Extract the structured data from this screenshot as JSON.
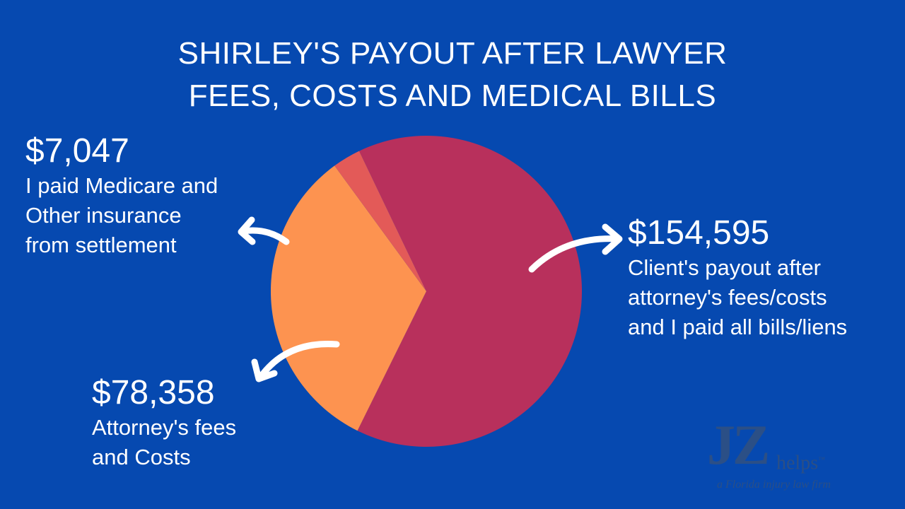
{
  "title": {
    "line1": "SHIRLEY'S PAYOUT AFTER LAWYER",
    "line2": "FEES, COSTS AND MEDICAL BILLS"
  },
  "colors": {
    "background": "#0649b0",
    "client_payout": "#b8305c",
    "attorney_fees": "#fd9350",
    "medicare": "#e35a58",
    "arrow": "#ffffff",
    "logo": "#2b4f86"
  },
  "callouts": {
    "medicare": {
      "amount": "$7,047",
      "desc_line1": "I paid Medicare and",
      "desc_line2": "Other insurance",
      "desc_line3": "from settlement"
    },
    "attorney": {
      "amount": "$78,358",
      "desc_line1": "Attorney's fees",
      "desc_line2": "and Costs"
    },
    "client": {
      "amount": "$154,595",
      "desc_line1": "Client's payout after",
      "desc_line2": "attorney's fees/costs",
      "desc_line3": "and I paid all bills/liens"
    }
  },
  "logo": {
    "mark": "JZ",
    "word": "helps",
    "tm": "™",
    "tagline": "a Florida injury law firm"
  },
  "chart_data": {
    "type": "pie",
    "title": "SHIRLEY'S PAYOUT AFTER LAWYER FEES, COSTS AND MEDICAL BILLS",
    "slices": [
      {
        "label": "Client's payout after attorney's fees/costs and I paid all bills/liens",
        "value": 154595,
        "color": "#b8305c"
      },
      {
        "label": "Attorney's fees and Costs",
        "value": 78358,
        "color": "#fd9350"
      },
      {
        "label": "I paid Medicare and Other insurance from settlement",
        "value": 7047,
        "color": "#e35a58"
      }
    ],
    "legend": "none"
  }
}
